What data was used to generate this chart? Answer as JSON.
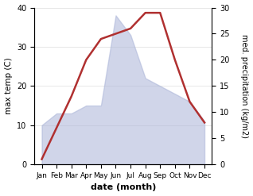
{
  "months": [
    "Jan",
    "Feb",
    "Mar",
    "Apr",
    "May",
    "Jun",
    "Jul",
    "Aug",
    "Sep",
    "Oct",
    "Nov",
    "Dec"
  ],
  "temp": [
    10,
    13,
    13,
    15,
    15,
    38,
    33,
    22,
    20,
    18,
    16,
    11
  ],
  "precip": [
    1,
    7,
    13,
    20,
    24,
    25,
    26,
    29,
    29,
    20,
    12,
    8
  ],
  "temp_color": "#aab4d8",
  "precip_color": "#b03030",
  "xlabel": "date (month)",
  "ylabel_left": "max temp (C)",
  "ylabel_right": "med. precipitation (kg/m2)",
  "ylim_left": [
    0,
    40
  ],
  "ylim_right": [
    0,
    30
  ],
  "yticks_left": [
    0,
    10,
    20,
    30,
    40
  ],
  "yticks_right": [
    0,
    5,
    10,
    15,
    20,
    25,
    30
  ],
  "area_alpha": 0.55,
  "line_width": 1.8
}
